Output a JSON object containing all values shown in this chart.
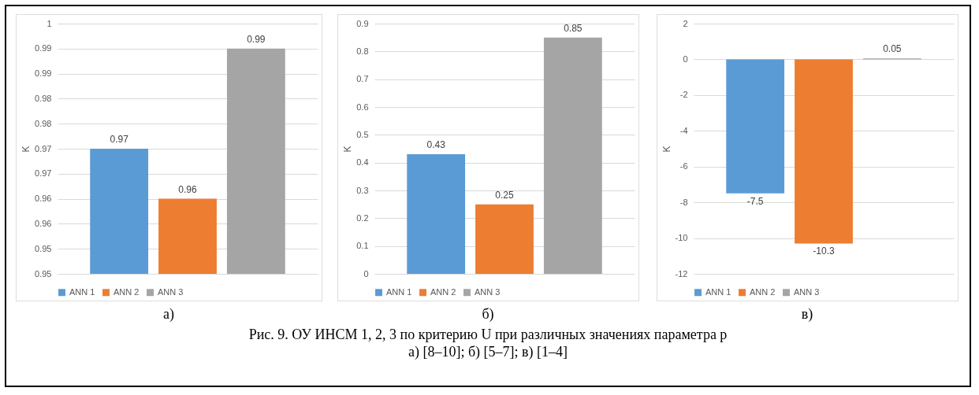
{
  "chart_data": [
    {
      "type": "bar",
      "ylabel": "K",
      "categories": [
        null
      ],
      "ylim": [
        0.95,
        1
      ],
      "yticks": [
        {
          "value": 0.95,
          "label": "0.95"
        },
        {
          "value": 0.955,
          "label": "0.95"
        },
        {
          "value": 0.96,
          "label": "0.96"
        },
        {
          "value": 0.965,
          "label": "0.96"
        },
        {
          "value": 0.97,
          "label": "0.97"
        },
        {
          "value": 0.975,
          "label": "0.97"
        },
        {
          "value": 0.98,
          "label": "0.98"
        },
        {
          "value": 0.985,
          "label": "0.98"
        },
        {
          "value": 0.99,
          "label": "0.99"
        },
        {
          "value": 0.995,
          "label": "0.99"
        },
        {
          "value": 1,
          "label": "1"
        }
      ],
      "grid": "y",
      "legend": "bottom",
      "tick_labels": "y",
      "annotations": [
        "а)"
      ],
      "series": [
        {
          "name": "ANN 1",
          "color": "#5b9bd5",
          "values": [
            0.975
          ],
          "value_labels": [
            "0.97"
          ]
        },
        {
          "name": "ANN 2",
          "color": "#ed7d31",
          "values": [
            0.965
          ],
          "value_labels": [
            "0.96"
          ]
        },
        {
          "name": "ANN 3",
          "color": "#a5a5a5",
          "values": [
            0.995
          ],
          "value_labels": [
            "0.99"
          ]
        }
      ]
    },
    {
      "type": "bar",
      "ylabel": "K",
      "categories": [
        null
      ],
      "ylim": [
        0,
        0.9
      ],
      "yticks": [
        0,
        0.1,
        0.2,
        0.3,
        0.4,
        0.5,
        0.6,
        0.7,
        0.8,
        0.9
      ],
      "grid": "y",
      "legend": "bottom",
      "tick_labels": "y",
      "data_labels": true,
      "annotations": [
        "б)",
        "Рис. 9. ОУ ИНСМ 1, 2, 3 по критерию U  при различных значениях параметра p",
        "а) [8–10]; б) [5–7]; в) [1–4]"
      ],
      "series": [
        {
          "name": "ANN 1",
          "color": "#5b9bd5",
          "values": [
            0.43
          ]
        },
        {
          "name": "ANN 2",
          "color": "#ed7d31",
          "values": [
            0.25
          ]
        },
        {
          "name": "ANN 3",
          "color": "#a5a5a5",
          "values": [
            0.85
          ]
        }
      ]
    },
    {
      "type": "bar",
      "ylabel": "K",
      "categories": [
        null
      ],
      "ylim": [
        -12,
        2
      ],
      "yticks": [
        -12,
        -10,
        -8,
        -6,
        -4,
        -2,
        0,
        2
      ],
      "grid": "y",
      "legend": "bottom",
      "tick_labels": "y",
      "data_labels": true,
      "annotations": [
        "в)"
      ],
      "series": [
        {
          "name": "ANN 1",
          "color": "#5b9bd5",
          "values": [
            -7.5
          ]
        },
        {
          "name": "ANN 2",
          "color": "#ed7d31",
          "values": [
            -10.3
          ]
        },
        {
          "name": "ANN 3",
          "color": "#a5a5a5",
          "values": [
            0.05
          ]
        }
      ]
    }
  ]
}
